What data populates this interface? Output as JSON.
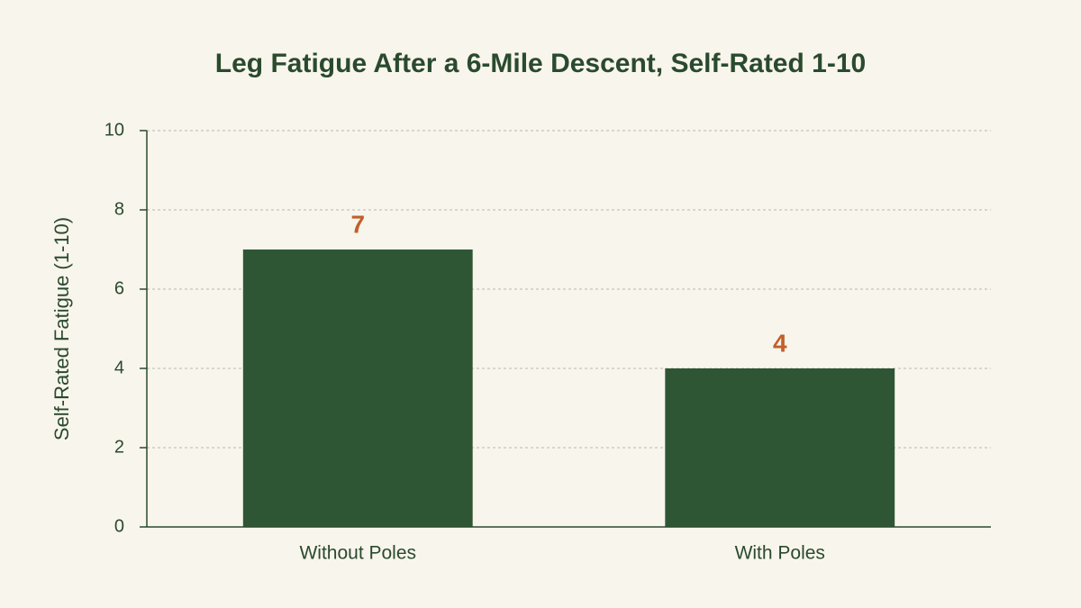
{
  "chart_data": {
    "type": "bar",
    "title": "Leg Fatigue After a 6-Mile Descent, Self-Rated 1-10",
    "y_label": "Self-Rated Fatigue (1-10)",
    "categories": [
      "Without Poles",
      "With Poles"
    ],
    "values": [
      7,
      4
    ],
    "color": "#2f5634",
    "label_color": "#c0602a",
    "ylim": [
      0,
      10
    ],
    "yticks": [
      0,
      2,
      4,
      6,
      8,
      10
    ],
    "grid": true
  }
}
